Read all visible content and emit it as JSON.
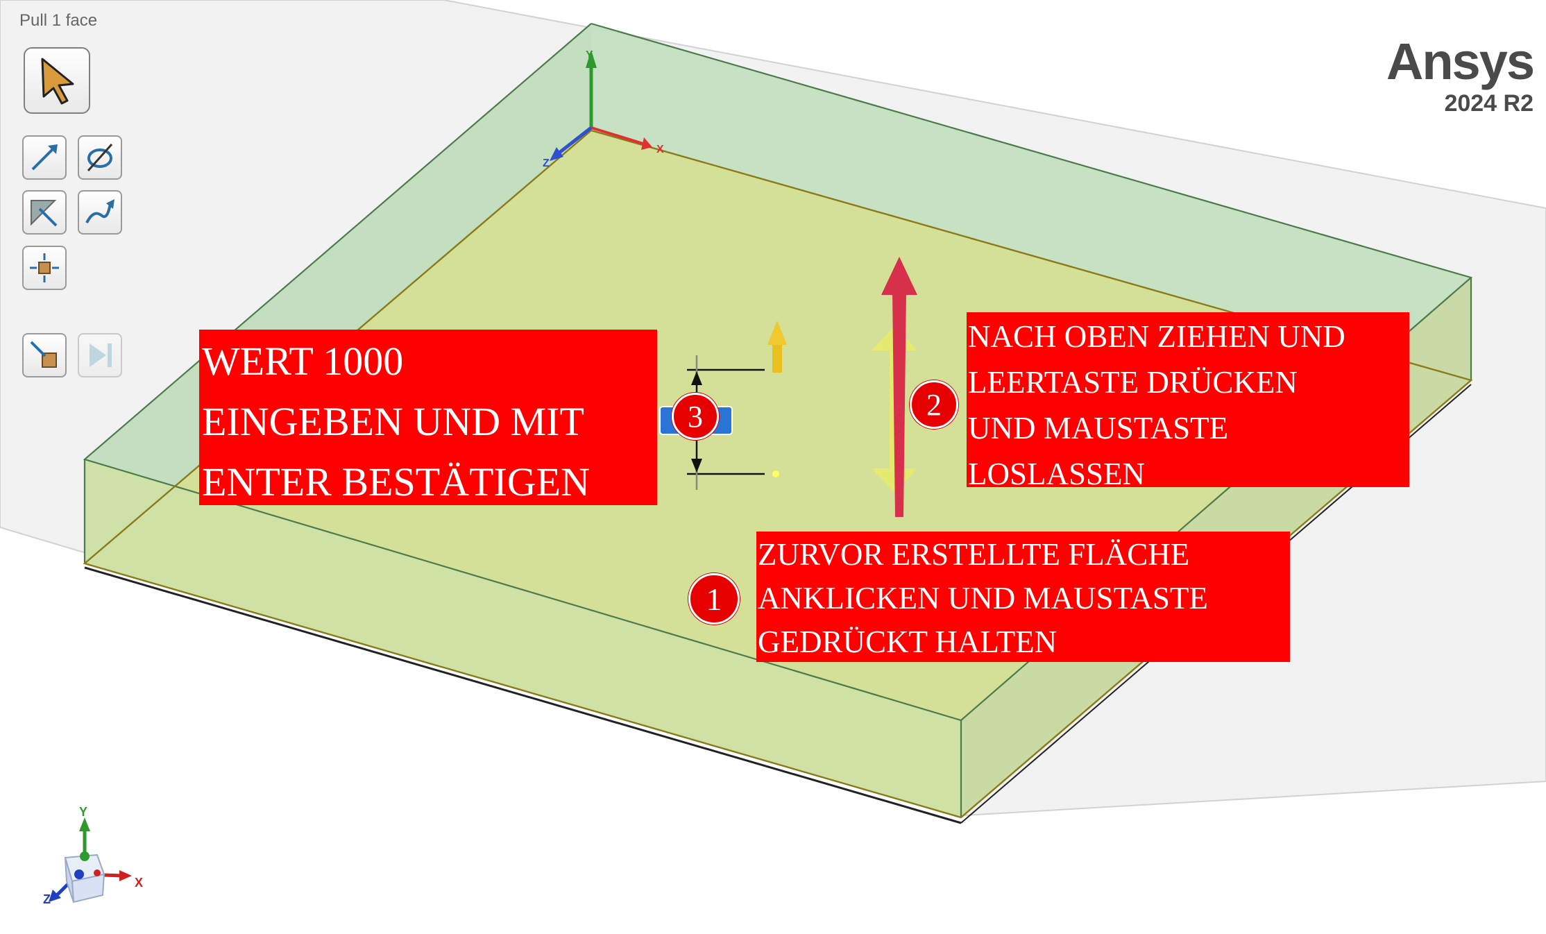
{
  "status": {
    "text": "Pull 1 face"
  },
  "brand": {
    "name": "Ansys",
    "version": "2024 R2"
  },
  "callouts": [
    {
      "lines": [
        "WERT 1000",
        "EINGEBEN UND MIT",
        "ENTER BESTÄTIGEN"
      ]
    },
    {
      "lines": [
        "NACH OBEN ZIEHEN UND",
        "LEERTASTE DRÜCKEN",
        "UND MAUSTASTE",
        "LOSLASSEN"
      ]
    },
    {
      "lines": [
        "ZURVOR ERSTELLTE FLÄCHE",
        "ANKLICKEN UND MAUSTASTE",
        "GEDRÜCKT HALTEN"
      ]
    }
  ],
  "badges": [
    "3",
    "2",
    "1"
  ],
  "axes": {
    "x": "X",
    "y": "Y",
    "z": "Z"
  },
  "tools": [
    {
      "icon": "select-arrow-icon"
    },
    {
      "icon": "pull-direction-icon"
    },
    {
      "icon": "revolve-icon"
    },
    {
      "icon": "up-to-icon"
    },
    {
      "icon": "sweep-icon"
    },
    {
      "icon": "pivot-box-icon"
    },
    {
      "icon": "complete-icon"
    },
    {
      "icon": "finish-icon"
    }
  ],
  "colors": {
    "callout": "#ff0000",
    "badge": "#e60000",
    "face": "#d4df98",
    "box": "#c4e2c4"
  }
}
